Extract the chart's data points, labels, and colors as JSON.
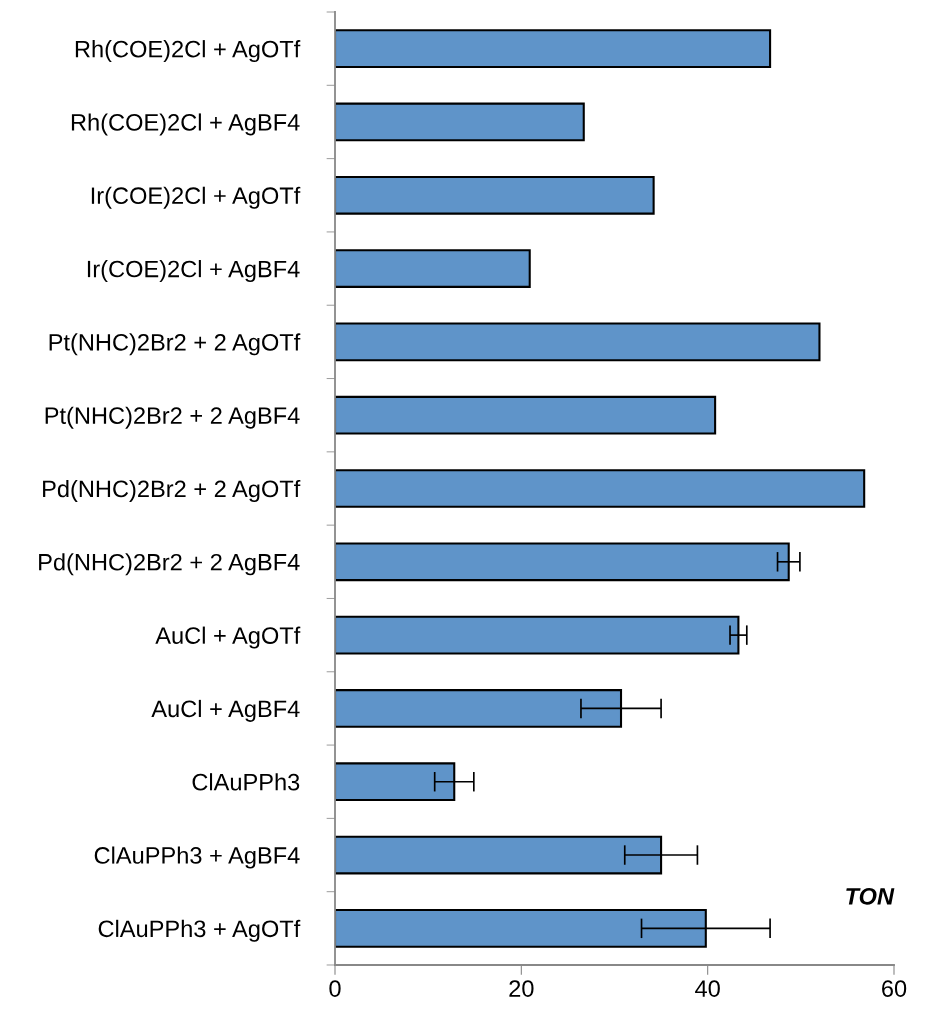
{
  "chart_data": {
    "type": "bar",
    "orientation": "horizontal",
    "xlabel": "TON",
    "categories": [
      "Rh(COE)2Cl + AgOTf",
      "Rh(COE)2Cl + AgBF4",
      "Ir(COE)2Cl + AgOTf",
      "Ir(COE)2Cl + AgBF4",
      "Pt(NHC)2Br2 + 2 AgOTf",
      "Pt(NHC)2Br2 + 2 AgBF4",
      "Pd(NHC)2Br2 + 2 AgOTf",
      "Pd(NHC)2Br2 + 2 AgBF4",
      "AuCl + AgOTf",
      "AuCl + AgBF4",
      "ClAuPPh3",
      "ClAuPPh3 + AgBF4",
      "ClAuPPh3 + AgOTf"
    ],
    "values": [
      46.7,
      26.7,
      34.2,
      20.9,
      52.0,
      40.8,
      56.8,
      48.7,
      43.3,
      30.7,
      12.8,
      35.0,
      39.8
    ],
    "errors": [
      null,
      null,
      null,
      null,
      null,
      null,
      null,
      1.2,
      0.9,
      4.3,
      2.1,
      3.9,
      6.9
    ],
    "color": "#5f94c9",
    "xlim": [
      0,
      60
    ],
    "xticks": [
      0,
      20,
      40,
      60
    ],
    "grid": false,
    "legend": false
  }
}
